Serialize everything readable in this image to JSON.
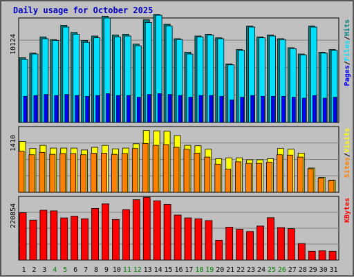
{
  "chart_data": [
    {
      "type": "bar",
      "title": "Daily usage for October 2025",
      "categories": [
        "1",
        "2",
        "3",
        "4",
        "5",
        "6",
        "7",
        "8",
        "9",
        "10",
        "11",
        "12",
        "13",
        "14",
        "15",
        "16",
        "17",
        "18",
        "19",
        "20",
        "21",
        "22",
        "23",
        "24",
        "25",
        "26",
        "27",
        "28",
        "29",
        "30",
        "31"
      ],
      "weekend_days": [
        "4",
        "5",
        "11",
        "12",
        "18",
        "19",
        "25",
        "26"
      ],
      "y_tick_label": "10124",
      "ylim": [
        0,
        11600
      ],
      "series": [
        {
          "name": "Hits",
          "color": "#008080",
          "values": [
            7200,
            7700,
            9500,
            9200,
            10800,
            10000,
            9100,
            9600,
            11800,
            9700,
            9800,
            8700,
            11400,
            12000,
            10900,
            9300,
            7800,
            9600,
            9800,
            9400,
            6500,
            8100,
            10700,
            9500,
            9700,
            9300,
            8300,
            7600,
            10700,
            7800,
            8100
          ]
        },
        {
          "name": "Files",
          "color": "#00e0ff",
          "values": [
            7000,
            7600,
            9300,
            9100,
            10600,
            9800,
            8900,
            9400,
            11600,
            9500,
            9600,
            8500,
            11100,
            11900,
            10700,
            9200,
            7600,
            9500,
            9700,
            9300,
            6400,
            8000,
            10600,
            9400,
            9600,
            9200,
            8200,
            7500,
            10600,
            7700,
            8000
          ]
        },
        {
          "name": "Pages",
          "color": "#0000ff",
          "values": [
            2900,
            3000,
            3100,
            3000,
            3100,
            3000,
            2900,
            3000,
            3200,
            3000,
            3000,
            2800,
            3100,
            3200,
            3100,
            3000,
            2800,
            3000,
            3000,
            2900,
            2500,
            2800,
            3000,
            2900,
            2900,
            2900,
            2800,
            2700,
            3000,
            2700,
            2800
          ]
        }
      ],
      "legend": [
        "Pages",
        "/",
        "Files",
        "/",
        "Hits"
      ]
    },
    {
      "type": "bar",
      "y_tick_label": "1410",
      "ylim": [
        0,
        1680
      ],
      "series": [
        {
          "name": "Visits",
          "color": "#ffff00",
          "values": [
            1300,
            1120,
            1200,
            1130,
            1130,
            1130,
            1080,
            1150,
            1200,
            1110,
            1130,
            1240,
            1580,
            1570,
            1560,
            1450,
            1200,
            1190,
            1100,
            860,
            880,
            880,
            830,
            830,
            860,
            1120,
            1100,
            1000,
            620,
            380,
            310
          ]
        },
        {
          "name": "Sites",
          "color": "#ff8000",
          "values": [
            1050,
            960,
            1020,
            970,
            990,
            990,
            960,
            1000,
            1000,
            970,
            990,
            1120,
            1250,
            1200,
            1220,
            1150,
            1100,
            1000,
            900,
            720,
            590,
            780,
            740,
            740,
            770,
            960,
            950,
            900,
            600,
            360,
            300
          ]
        }
      ],
      "legend": [
        "Sites",
        "/",
        "Visits"
      ]
    },
    {
      "type": "bar",
      "y_tick_label": "220854",
      "ylim": [
        0,
        290000
      ],
      "series": [
        {
          "name": "KBytes",
          "color": "#ff0000",
          "values": [
            216000,
            182000,
            227000,
            224000,
            192000,
            200000,
            188000,
            235000,
            256000,
            185000,
            230000,
            275000,
            286000,
            270000,
            254000,
            205000,
            192000,
            188000,
            180000,
            90000,
            150000,
            140000,
            130000,
            155000,
            193000,
            148000,
            143000,
            75000,
            40000,
            42000,
            40000
          ]
        }
      ],
      "legend": [
        "KBytes"
      ]
    }
  ]
}
